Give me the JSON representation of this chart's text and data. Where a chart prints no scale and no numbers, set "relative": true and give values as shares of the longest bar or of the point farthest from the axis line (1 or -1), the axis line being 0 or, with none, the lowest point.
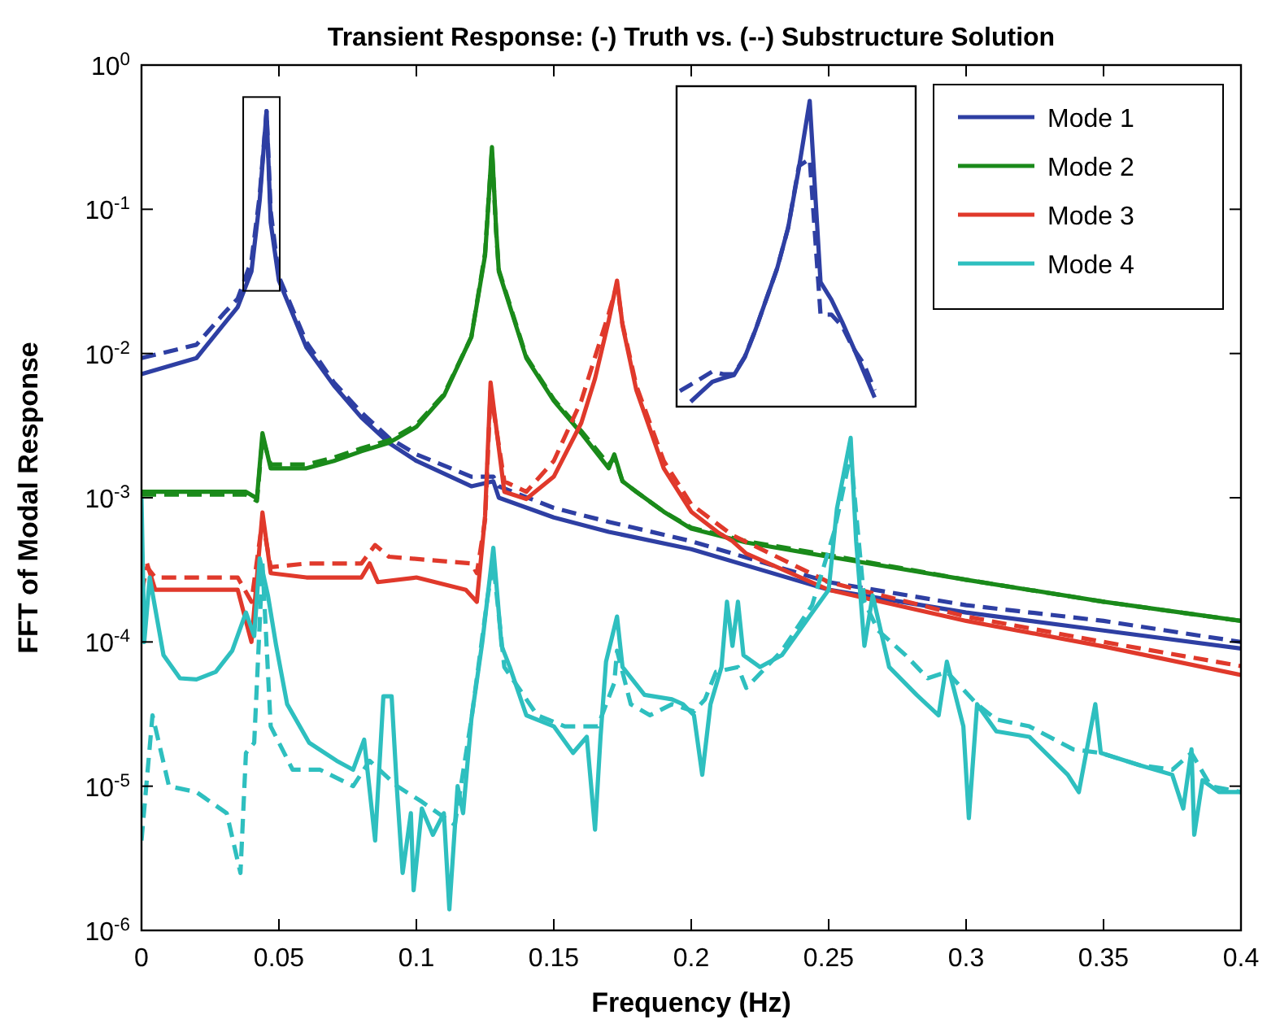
{
  "chart_data": [
    {
      "type": "line",
      "title": "Transient Response: (-) Truth vs. (--) Substructure Solution",
      "xlabel": "Frequency (Hz)",
      "ylabel": "FFT of Modal Response",
      "log": "y",
      "legend": "top right",
      "grid": false,
      "xlim": [
        0,
        0.4
      ],
      "xticks": [
        0,
        0.05,
        0.1,
        0.15,
        0.2,
        0.25,
        0.3,
        0.35,
        0.4
      ],
      "ylim": [
        1e-06,
        1
      ],
      "yticks": [
        {
          "value": 1e-06,
          "label": "10$^{-6}$"
        },
        {
          "value": 1e-05,
          "label": "10$^{-5}$"
        },
        {
          "value": 0.0001,
          "label": "10$^{-4}$"
        },
        {
          "value": 0.001,
          "label": "10$^{-3}$"
        },
        {
          "value": 0.01,
          "label": "10$^{-2}$"
        },
        {
          "value": 0.1,
          "label": "10$^{-1}$"
        },
        {
          "value": 1,
          "label": "10$^{0}$"
        }
      ],
      "series": [
        {
          "name": "Mode 1",
          "color": "#2e3fa3",
          "line_style": "solid",
          "x": [
            0,
            0.02,
            0.03,
            0.035,
            0.04,
            0.043,
            0.0455,
            0.047,
            0.05,
            0.06,
            0.07,
            0.08,
            0.09,
            0.1,
            0.12,
            0.128,
            0.13,
            0.15,
            0.17,
            0.2,
            0.25,
            0.3,
            0.35,
            0.4
          ],
          "values": [
            0.0072,
            0.0093,
            0.016,
            0.021,
            0.037,
            0.115,
            0.48,
            0.081,
            0.032,
            0.011,
            0.006,
            0.0036,
            0.0024,
            0.0018,
            0.0012,
            0.0013,
            0.001,
            0.00073,
            0.00058,
            0.00044,
            0.00023,
            0.00016,
            0.00012,
            9e-05
          ]
        },
        {
          "color": "#2e3fa3",
          "line_style": "dashed",
          "x": [
            0,
            0.02,
            0.03,
            0.035,
            0.04,
            0.043,
            0.0455,
            0.047,
            0.05,
            0.06,
            0.07,
            0.08,
            0.09,
            0.1,
            0.12,
            0.128,
            0.13,
            0.15,
            0.17,
            0.2,
            0.25,
            0.3,
            0.35,
            0.4
          ],
          "values": [
            0.0093,
            0.0115,
            0.019,
            0.024,
            0.044,
            0.125,
            0.48,
            0.097,
            0.034,
            0.012,
            0.0063,
            0.0039,
            0.0026,
            0.002,
            0.0014,
            0.0014,
            0.0012,
            0.00085,
            0.00068,
            0.0005,
            0.00026,
            0.00018,
            0.00014,
            0.0001
          ]
        },
        {
          "name": "Mode 2",
          "color": "#1a8a1a",
          "line_style": "solid",
          "x": [
            0,
            0.038,
            0.042,
            0.044,
            0.047,
            0.06,
            0.07,
            0.08,
            0.09,
            0.1,
            0.11,
            0.12,
            0.125,
            0.1275,
            0.129,
            0.13,
            0.14,
            0.15,
            0.16,
            0.17,
            0.172,
            0.175,
            0.18,
            0.19,
            0.2,
            0.22,
            0.25,
            0.3,
            0.35,
            0.4
          ],
          "values": [
            0.0011,
            0.0011,
            0.00099,
            0.0028,
            0.0016,
            0.0016,
            0.0018,
            0.0021,
            0.0024,
            0.0031,
            0.0051,
            0.013,
            0.048,
            0.27,
            0.074,
            0.037,
            0.0093,
            0.0047,
            0.0028,
            0.0016,
            0.002,
            0.0013,
            0.0011,
            0.0008,
            0.00061,
            0.00049,
            0.00039,
            0.00027,
            0.00019,
            0.00014
          ]
        },
        {
          "color": "#1a8a1a",
          "line_style": "dashed",
          "x": [
            0,
            0.038,
            0.042,
            0.044,
            0.047,
            0.06,
            0.07,
            0.08,
            0.09,
            0.1,
            0.11,
            0.12,
            0.125,
            0.1275,
            0.129,
            0.13,
            0.14,
            0.15,
            0.16,
            0.17,
            0.172,
            0.175,
            0.18,
            0.19,
            0.2,
            0.22,
            0.25,
            0.3,
            0.35,
            0.4
          ],
          "values": [
            0.00105,
            0.00105,
            0.00095,
            0.0026,
            0.0017,
            0.0017,
            0.0019,
            0.0022,
            0.0025,
            0.0032,
            0.0052,
            0.013,
            0.05,
            0.26,
            0.07,
            0.038,
            0.0095,
            0.0048,
            0.0029,
            0.0017,
            0.0019,
            0.0013,
            0.0011,
            0.0008,
            0.00062,
            0.0005,
            0.0004,
            0.00027,
            0.00019,
            0.00014
          ]
        },
        {
          "name": "Mode 3",
          "color": "#e0392b",
          "line_style": "solid",
          "x": [
            0.002,
            0.005,
            0.035,
            0.04,
            0.044,
            0.047,
            0.06,
            0.08,
            0.083,
            0.086,
            0.1,
            0.118,
            0.122,
            0.125,
            0.127,
            0.132,
            0.14,
            0.15,
            0.16,
            0.165,
            0.17,
            0.173,
            0.175,
            0.18,
            0.19,
            0.2,
            0.21,
            0.215,
            0.22,
            0.25,
            0.3,
            0.35,
            0.4
          ],
          "values": [
            0.00035,
            0.00023,
            0.00023,
            0.0001,
            0.00079,
            0.0003,
            0.00028,
            0.00028,
            0.00035,
            0.00026,
            0.00028,
            0.00023,
            0.00019,
            0.00075,
            0.0063,
            0.0011,
            0.00098,
            0.0014,
            0.0033,
            0.0067,
            0.017,
            0.032,
            0.0157,
            0.0056,
            0.0016,
            0.0008,
            0.00057,
            0.0005,
            0.00041,
            0.00023,
            0.00014,
            9.3e-05,
            5.9e-05
          ]
        },
        {
          "color": "#e0392b",
          "line_style": "dashed",
          "x": [
            0,
            0.002,
            0.005,
            0.035,
            0.04,
            0.044,
            0.047,
            0.06,
            0.08,
            0.085,
            0.09,
            0.12,
            0.122,
            0.125,
            0.127,
            0.132,
            0.14,
            0.15,
            0.16,
            0.17,
            0.173,
            0.175,
            0.18,
            0.19,
            0.2,
            0.215,
            0.25,
            0.3,
            0.35,
            0.4
          ],
          "values": [
            0.00022,
            0.00033,
            0.00028,
            0.00028,
            0.00019,
            0.0007,
            0.00033,
            0.00035,
            0.00035,
            0.00047,
            0.00039,
            0.00035,
            0.0003,
            0.0007,
            0.0055,
            0.0013,
            0.0011,
            0.0018,
            0.0047,
            0.019,
            0.03,
            0.016,
            0.006,
            0.0018,
            0.0009,
            0.00055,
            0.00026,
            0.00015,
            0.0001,
            6.8e-05
          ]
        },
        {
          "name": "Mode 4",
          "color": "#2ebfbf",
          "line_style": "solid",
          "x": [
            0,
            0.001,
            0.003,
            0.008,
            0.014,
            0.02,
            0.027,
            0.033,
            0.038,
            0.041,
            0.043,
            0.046,
            0.049,
            0.053,
            0.061,
            0.071,
            0.077,
            0.081,
            0.085,
            0.088,
            0.091,
            0.093,
            0.095,
            0.098,
            0.099,
            0.102,
            0.106,
            0.11,
            0.112,
            0.115,
            0.117,
            0.12,
            0.124,
            0.128,
            0.131,
            0.134,
            0.14,
            0.15,
            0.157,
            0.162,
            0.165,
            0.167,
            0.169,
            0.173,
            0.175,
            0.183,
            0.193,
            0.197,
            0.201,
            0.204,
            0.207,
            0.211,
            0.213,
            0.215,
            0.217,
            0.219,
            0.225,
            0.233,
            0.243,
            0.25,
            0.253,
            0.258,
            0.26,
            0.263,
            0.266,
            0.272,
            0.282,
            0.29,
            0.293,
            0.299,
            0.301,
            0.304,
            0.311,
            0.323,
            0.337,
            0.341,
            0.347,
            0.349,
            0.363,
            0.375,
            0.379,
            0.382,
            0.383,
            0.386,
            0.392,
            0.4
          ],
          "values": [
            0.001,
            0.0001,
            0.00028,
            8.1e-05,
            5.6e-05,
            5.5e-05,
            6.2e-05,
            8.7e-05,
            0.00016,
            0.00011,
            0.00038,
            0.00021,
            9.4e-05,
            3.7e-05,
            2e-05,
            1.5e-05,
            1.3e-05,
            2.1e-05,
            4.2e-06,
            4.2e-05,
            4.2e-05,
            9.1e-06,
            2.5e-06,
            6.5e-06,
            1.9e-06,
            7e-06,
            4.6e-06,
            6.5e-06,
            1.4e-06,
            1e-05,
            6.5e-06,
            2.9e-05,
            0.0001,
            0.00045,
            9.4e-05,
            6.7e-05,
            3.1e-05,
            2.6e-05,
            1.7e-05,
            2.2e-05,
            5e-06,
            2.2e-05,
            7.3e-05,
            0.00015,
            6.7e-05,
            4.3e-05,
            4e-05,
            3.7e-05,
            3.1e-05,
            1.2e-05,
            3.7e-05,
            6.7e-05,
            0.00019,
            9.4e-05,
            0.00019,
            8.1e-05,
            6.7e-05,
            8.1e-05,
            0.00015,
            0.00023,
            0.00084,
            0.0026,
            0.0005,
            9.4e-05,
            0.00021,
            6.7e-05,
            4.3e-05,
            3.1e-05,
            7.3e-05,
            2.6e-05,
            6e-06,
            3.7e-05,
            2.4e-05,
            2.2e-05,
            1.2e-05,
            9.1e-06,
            3.7e-05,
            1.7e-05,
            1.4e-05,
            1.2e-05,
            7e-06,
            1.8e-05,
            4.6e-06,
            1.1e-05,
            9.1e-06,
            9.1e-06
          ]
        },
        {
          "color": "#2ebfbf",
          "line_style": "dashed",
          "x": [
            0,
            0.004,
            0.01,
            0.02,
            0.031,
            0.036,
            0.038,
            0.041,
            0.044,
            0.047,
            0.055,
            0.065,
            0.077,
            0.083,
            0.093,
            0.102,
            0.114,
            0.12,
            0.126,
            0.128,
            0.132,
            0.144,
            0.154,
            0.166,
            0.172,
            0.173,
            0.178,
            0.185,
            0.193,
            0.201,
            0.205,
            0.209,
            0.217,
            0.22,
            0.233,
            0.244,
            0.252,
            0.258,
            0.263,
            0.268,
            0.278,
            0.286,
            0.293,
            0.304,
            0.311,
            0.323,
            0.339,
            0.349,
            0.363,
            0.375,
            0.382,
            0.389,
            0.4
          ],
          "values": [
            4.2e-06,
            3.1e-05,
            1e-05,
            9.1e-06,
            6.5e-06,
            2.5e-06,
            1.7e-05,
            2e-05,
            0.00035,
            2.6e-05,
            1.3e-05,
            1.3e-05,
            1e-05,
            1.5e-05,
            1e-05,
            7.8e-06,
            5.4e-06,
            2.9e-05,
            0.00021,
            0.00035,
            6.7e-05,
            3.1e-05,
            2.6e-05,
            2.6e-05,
            5.2e-05,
            8.7e-05,
            3.7e-05,
            3.1e-05,
            3.7e-05,
            3.3e-05,
            4e-05,
            6.2e-05,
            6.7e-05,
            4.8e-05,
            8.7e-05,
            0.00018,
            0.00058,
            0.002,
            0.00019,
            0.00012,
            8.1e-05,
            5.6e-05,
            6.2e-05,
            3.7e-05,
            2.9e-05,
            2.6e-05,
            1.8e-05,
            1.7e-05,
            1.4e-05,
            1.3e-05,
            1.7e-05,
            1e-05,
            9.1e-06
          ]
        }
      ]
    },
    {
      "type": "line",
      "relative": true,
      "categories": [
        null,
        null,
        null,
        null,
        null,
        null,
        null,
        null,
        null,
        null,
        null,
        null,
        null,
        null,
        null,
        null,
        null,
        null,
        null,
        null
      ],
      "series": [
        {
          "color": "#2e3fa3",
          "line_style": "solid",
          "values": [
            null,
            0.016,
            0.049,
            0.081,
            0.093,
            0.103,
            0.162,
            0.252,
            0.353,
            0.453,
            0.584,
            0.78,
            1,
            0.407,
            0.35,
            0.277,
            0.197,
            0.114,
            0.03,
            null
          ]
        },
        {
          "color": "#2e3fa3",
          "line_style": "dashed",
          "values": [
            0.051,
            0.072,
            0.093,
            0.115,
            0.106,
            0.106,
            0.163,
            0.252,
            0.353,
            0.453,
            0.584,
            0.787,
            0.81,
            0.301,
            0.301,
            0.263,
            0.192,
            0.14,
            0.053,
            null
          ]
        }
      ]
    }
  ]
}
